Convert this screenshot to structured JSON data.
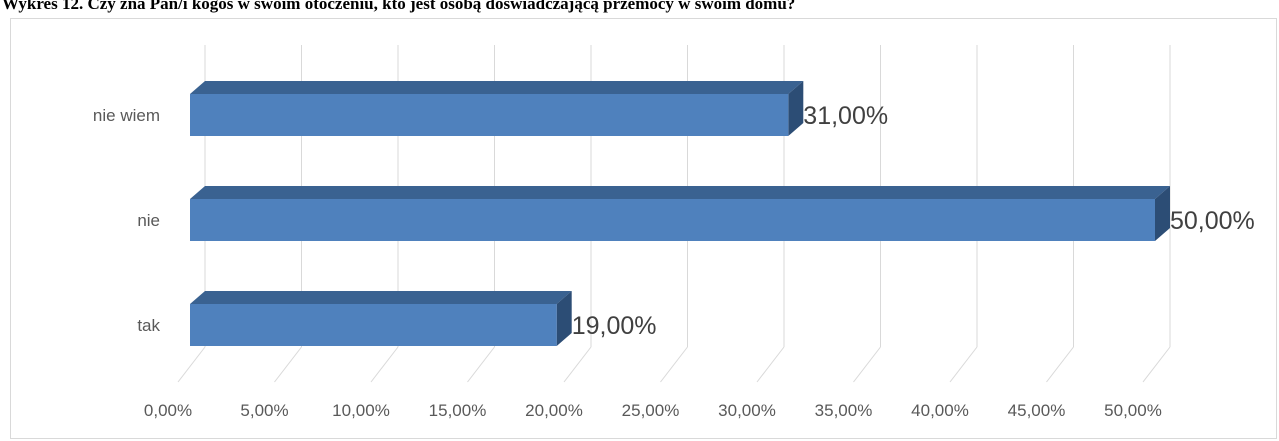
{
  "chart_data": {
    "type": "bar",
    "orientation": "horizontal",
    "style": "3d",
    "title": "Wykres 12. Czy zna Pan/i kogoś w swoim otoczeniu, kto jest osobą doświadczającą przemocy w swoim domu?",
    "categories": [
      "tak",
      "nie",
      "nie wiem"
    ],
    "values": [
      19,
      50,
      31
    ],
    "data_labels": [
      "19,00%",
      "50,00%",
      "31,00%"
    ],
    "x_ticks": [
      "0,00%",
      "5,00%",
      "10,00%",
      "15,00%",
      "20,00%",
      "25,00%",
      "30,00%",
      "35,00%",
      "40,00%",
      "45,00%",
      "50,00%"
    ],
    "xlim": [
      0,
      50
    ],
    "xlabel": "",
    "ylabel": "",
    "grid": true,
    "legend": "none",
    "colors": {
      "bar_front": "#4f81bd",
      "bar_top": "#3a6291",
      "bar_side": "#2c4d75",
      "gridline": "#d9d9d9",
      "tick_text": "#595959",
      "data_label_text": "#404040"
    }
  }
}
